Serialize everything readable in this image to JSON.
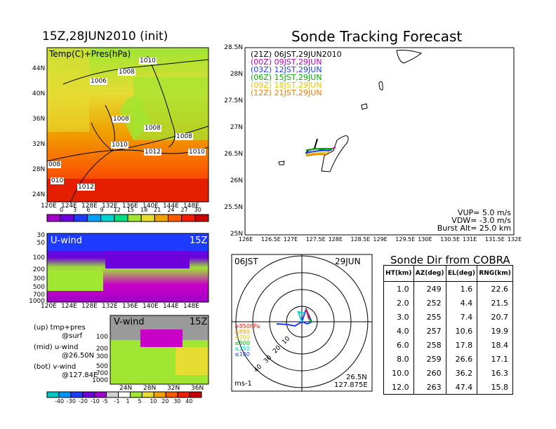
{
  "left_title": "15Z,28JUN2010 (init)",
  "right_title": "Sonde Tracking Forecast",
  "temp_map": {
    "label": "Temp(C)+Pres(hPa)",
    "lat_ticks": [
      "44N",
      "40N",
      "36N",
      "32N",
      "28N",
      "24N"
    ],
    "lon_ticks": [
      "120E",
      "124E",
      "128E",
      "132E",
      "136E",
      "140E",
      "144E",
      "148E"
    ],
    "isobar_labels": [
      "1010",
      "1008",
      "1006",
      "1008",
      "1008",
      "1010",
      "1008",
      "1012",
      "1010",
      "008",
      "010",
      "1012"
    ],
    "colorbar_ticks": [
      "0",
      "3",
      "6",
      "9",
      "12",
      "15",
      "18",
      "21",
      "24",
      "27",
      "30"
    ],
    "colorbar_colors": [
      "#a000c8",
      "#6e00dc",
      "#1e3cff",
      "#00a0ff",
      "#00d2d2",
      "#00dc82",
      "#a0e632",
      "#e6dc32",
      "#f0a000",
      "#fa5a00",
      "#f01e00",
      "#c80000"
    ]
  },
  "u_wind": {
    "label": "U-wind",
    "time": "15Z",
    "y_ticks": [
      "30",
      "50",
      "100",
      "200",
      "300",
      "500",
      "700",
      "1000"
    ],
    "x_ticks": [
      "120E",
      "124E",
      "128E",
      "132E",
      "136E",
      "140E",
      "144E",
      "148E"
    ]
  },
  "v_wind": {
    "label": "V-wind",
    "time": "15Z",
    "y_ticks": [
      "100",
      "200",
      "300",
      "500",
      "700",
      "1000"
    ],
    "x_ticks": [
      "24N",
      "28N",
      "32N",
      "36N"
    ],
    "colorbar_ticks": [
      "-40",
      "-30",
      "-20",
      "-10",
      "-5",
      "-1",
      "1",
      "5",
      "10",
      "20",
      "30",
      "40"
    ],
    "colorbar_colors": [
      "#00c8c8",
      "#0096ff",
      "#1e3cff",
      "#6e00dc",
      "#a000c8",
      "#d2d2d2",
      "#ffffff",
      "#a0e632",
      "#e6dc32",
      "#f0a000",
      "#fa5a00",
      "#f01e00",
      "#c80000"
    ]
  },
  "notes": [
    {
      "a": "(up) tmp+pres",
      "b": "@surf"
    },
    {
      "a": "(mid) u-wind",
      "b": "@26.50N"
    },
    {
      "a": "(bot) v-wind",
      "b": "@127.84E"
    }
  ],
  "tracking": {
    "lat_ticks": [
      "28.5N",
      "28N",
      "27.5N",
      "27N",
      "26.5N",
      "26N",
      "25.5N",
      "25N"
    ],
    "lon_ticks": [
      "126E",
      "126.5E",
      "127E",
      "127.5E",
      "128E",
      "128.5E",
      "129E",
      "129.5E",
      "130E",
      "130.5E",
      "131E",
      "131.5E",
      "132E"
    ],
    "legend": [
      {
        "text": "(21Z)  06JST,29JUN2010",
        "color": "#000000"
      },
      {
        "text": "(00Z)  09JST,29JUN",
        "color": "#c000c0"
      },
      {
        "text": "(03Z)  12JST,29JUN",
        "color": "#1e3cff"
      },
      {
        "text": "(06Z)  15JST,29JUN",
        "color": "#00b400"
      },
      {
        "text": "(09Z)  18JST,29JUN",
        "color": "#e6c800"
      },
      {
        "text": "(12Z)  21JST,29JUN",
        "color": "#f08000"
      }
    ],
    "params": [
      "VUP=  5.0  m/s",
      "VDW= -3.0  m/s",
      "Burst Alt=  25.0  km"
    ]
  },
  "polar": {
    "top_left": "06JST",
    "top_right": "29JUN",
    "ring_labels": [
      "10",
      "20",
      "30",
      "40"
    ],
    "pressure_legend": [
      {
        "text": "≥850hPa",
        "color": "#f01e00"
      },
      {
        "text": "≤850",
        "color": "#f0a000"
      },
      {
        "text": "≤700",
        "color": "#e6c800"
      },
      {
        "text": "≤500",
        "color": "#00b400"
      },
      {
        "text": "≤250",
        "color": "#00d2d2"
      },
      {
        "text": "≤100",
        "color": "#1e3cff"
      }
    ],
    "unit": "ms-1",
    "loc1": "26.5N",
    "loc2": "127.875E"
  },
  "direction_table": {
    "title": "Sonde Dir from COBRA",
    "headers": [
      "HT(km)",
      "AZ(deg)",
      "EL(deg)",
      "RNG(km)"
    ],
    "rows": [
      [
        "1.0",
        "249",
        "1.6",
        "22.6"
      ],
      [
        "2.0",
        "252",
        "4.4",
        "21.5"
      ],
      [
        "3.0",
        "255",
        "7.4",
        "20.7"
      ],
      [
        "4.0",
        "257",
        "10.6",
        "19.9"
      ],
      [
        "6.0",
        "258",
        "17.8",
        "18.4"
      ],
      [
        "8.0",
        "259",
        "26.6",
        "17.1"
      ],
      [
        "10.0",
        "260",
        "36.2",
        "16.3"
      ],
      [
        "12.0",
        "263",
        "47.4",
        "15.8"
      ]
    ]
  },
  "chart_data": {
    "type": "table",
    "title": "Sonde Dir from COBRA",
    "columns": [
      "HT(km)",
      "AZ(deg)",
      "EL(deg)",
      "RNG(km)"
    ],
    "rows": [
      [
        1.0,
        249,
        1.6,
        22.6
      ],
      [
        2.0,
        252,
        4.4,
        21.5
      ],
      [
        3.0,
        255,
        7.4,
        20.7
      ],
      [
        4.0,
        257,
        10.6,
        19.9
      ],
      [
        6.0,
        258,
        17.8,
        18.4
      ],
      [
        8.0,
        259,
        26.6,
        17.1
      ],
      [
        10.0,
        260,
        36.2,
        16.3
      ],
      [
        12.0,
        263,
        47.4,
        15.8
      ]
    ]
  }
}
